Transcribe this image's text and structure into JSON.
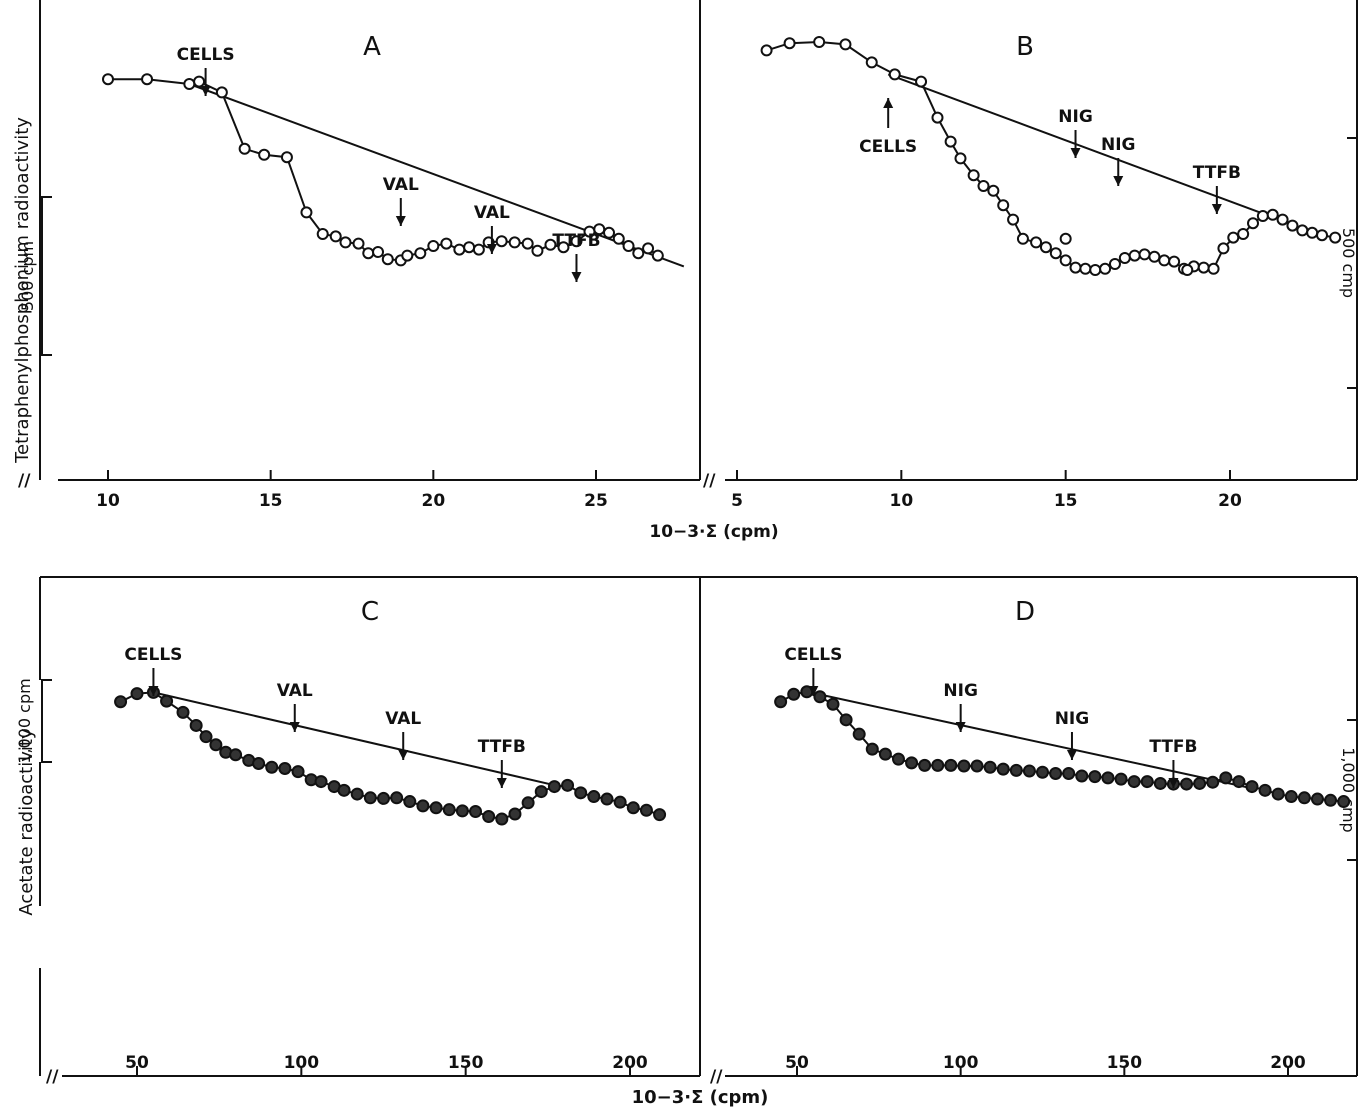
{
  "figure": {
    "top_xlabel": "10−3∙Σ (cpm)",
    "bottom_xlabel": "10−3∙Σ (cpm)",
    "top_ylabel": "Tetraphenylphosphonium radioactivity",
    "bottom_ylabel": "Acetate radioactivity",
    "axis_break": "//"
  },
  "chart_data": [
    {
      "panel": "A",
      "type": "line",
      "title": "A",
      "xlabel": "10−3∙Σ (cpm)",
      "ylabel": "Tetraphenylphosphonium radioactivity",
      "xlim": [
        8,
        28
      ],
      "ylim": [
        0,
        4000
      ],
      "xticks": [
        "10",
        "15",
        "20",
        "25"
      ],
      "scale_bar": {
        "label": "500 cpm",
        "value": 500
      },
      "marker": "open-circle",
      "series": [
        {
          "x": [
            10,
            11.2,
            12.5,
            12.8,
            13.5,
            14.2,
            14.8,
            15.5,
            16.1,
            16.6,
            17.0,
            17.3,
            17.7,
            18.0,
            18.3,
            18.6,
            19.0,
            19.2,
            19.6,
            20.0,
            20.4,
            20.8,
            21.1,
            21.4,
            21.7,
            22.1,
            22.5,
            22.9,
            23.2,
            23.6,
            24.0,
            24.4,
            24.8,
            25.1,
            25.4,
            25.7,
            26.0,
            26.3,
            26.6,
            26.9
          ],
          "y": [
            3340,
            3340,
            3300,
            3320,
            3230,
            2760,
            2710,
            2690,
            2230,
            2050,
            2030,
            1980,
            1970,
            1890,
            1900,
            1840,
            1830,
            1870,
            1890,
            1950,
            1970,
            1920,
            1940,
            1920,
            1980,
            1990,
            1980,
            1970,
            1910,
            1960,
            1940,
            1990,
            2070,
            2090,
            2060,
            2010,
            1950,
            1890,
            1930,
            1870
          ]
        }
      ],
      "baseline": {
        "x": [
          12.5,
          27.7
        ],
        "y": [
          3300,
          1780
        ]
      },
      "annotations": [
        {
          "text": "CELLS",
          "x": 13.0,
          "direction": "down"
        },
        {
          "text": "VAL",
          "x": 19.0,
          "direction": "down"
        },
        {
          "text": "VAL",
          "x": 21.8,
          "direction": "down"
        },
        {
          "text": "TTFB",
          "x": 24.4,
          "direction": "down"
        }
      ]
    },
    {
      "panel": "B",
      "type": "line",
      "title": "B",
      "xlabel": "10−3∙Σ (cpm)",
      "ylabel": "Tetraphenylphosphonium radioactivity",
      "xlim": [
        4.8,
        24
      ],
      "ylim": [
        0,
        4000
      ],
      "xticks": [
        "5",
        "10",
        "15",
        "20"
      ],
      "scale_bar": {
        "label": "500 cmp",
        "value": 500
      },
      "marker": "open-circle",
      "series": [
        {
          "x": [
            5.9,
            6.6,
            7.5,
            8.3,
            9.1,
            9.8,
            10.6,
            11.1,
            11.5,
            11.8,
            12.2,
            12.5,
            12.8,
            13.1,
            13.4,
            13.7,
            14.1,
            14.4,
            14.7,
            15.0,
            15.3,
            15.6,
            15.9,
            16.2,
            16.5,
            16.8,
            17.1,
            17.4,
            17.7,
            18.0,
            18.3,
            18.6,
            18.9,
            19.2,
            19.5,
            19.8,
            20.1,
            20.4,
            20.7,
            21.0,
            21.3,
            21.6,
            21.9,
            22.2,
            22.5,
            22.8,
            23.2
          ],
          "y": [
            3580,
            3640,
            3650,
            3630,
            3480,
            3380,
            3320,
            3020,
            2820,
            2680,
            2540,
            2450,
            2410,
            2290,
            2170,
            2010,
            1980,
            1940,
            1890,
            1830,
            1770,
            1760,
            1750,
            1760,
            1800,
            1850,
            1870,
            1880,
            1860,
            1830,
            1820,
            1760,
            1780,
            1770,
            1760,
            1930,
            2020,
            2050,
            2140,
            2200,
            2210,
            2170,
            2120,
            2080,
            2060,
            2040,
            2020
          ],
          "extra_points": [
            {
              "x": 15.0,
              "y": 2010
            },
            {
              "x": 18.7,
              "y": 1750
            }
          ]
        }
      ],
      "baseline": {
        "x": [
          9.6,
          21.3
        ],
        "y": [
          3380,
          2190
        ]
      },
      "annotations": [
        {
          "text": "CELLS",
          "x": 9.6,
          "direction": "up"
        },
        {
          "text": "NIG",
          "x": 15.3,
          "direction": "down"
        },
        {
          "text": "NIG",
          "x": 16.6,
          "direction": "down"
        },
        {
          "text": "TTFB",
          "x": 19.6,
          "direction": "down"
        }
      ]
    },
    {
      "panel": "C",
      "type": "line",
      "title": "C",
      "xlabel": "10−3∙Σ (cpm)",
      "ylabel": "Acetate radioactivity",
      "xlim": [
        35,
        215
      ],
      "ylim": [
        0,
        8000
      ],
      "xticks": [
        "50",
        "100",
        "150",
        "200"
      ],
      "scale_bar": {
        "label": "1,000 cpm",
        "value": 1000
      },
      "marker": "filled-circle",
      "series": [
        {
          "x": [
            45,
            50,
            55,
            59,
            64,
            68,
            71,
            74,
            77,
            80,
            84,
            87,
            91,
            95,
            99,
            103,
            106,
            110,
            113,
            117,
            121,
            125,
            129,
            133,
            137,
            141,
            145,
            149,
            153,
            157,
            161,
            165,
            169,
            173,
            177,
            181,
            185,
            189,
            193,
            197,
            201,
            205,
            209
          ],
          "y": [
            6000,
            6130,
            6150,
            6010,
            5830,
            5620,
            5440,
            5310,
            5190,
            5150,
            5060,
            5010,
            4950,
            4930,
            4880,
            4750,
            4720,
            4640,
            4580,
            4520,
            4460,
            4450,
            4460,
            4400,
            4330,
            4300,
            4270,
            4250,
            4240,
            4160,
            4120,
            4200,
            4380,
            4560,
            4640,
            4660,
            4540,
            4480,
            4440,
            4390,
            4300,
            4260,
            4190
          ]
        }
      ],
      "baseline": {
        "x": [
          55,
          178
        ],
        "y": [
          6150,
          4650
        ]
      },
      "annotations": [
        {
          "text": "CELLS",
          "x": 55,
          "direction": "down"
        },
        {
          "text": "VAL",
          "x": 98,
          "direction": "down"
        },
        {
          "text": "VAL",
          "x": 131,
          "direction": "down"
        },
        {
          "text": "TTFB",
          "x": 161,
          "direction": "down"
        }
      ]
    },
    {
      "panel": "D",
      "type": "line",
      "title": "D",
      "xlabel": "10−3∙Σ (cpm)",
      "ylabel": "Acetate radioactivity",
      "xlim": [
        34,
        220
      ],
      "ylim": [
        0,
        8000
      ],
      "xticks": [
        "50",
        "100",
        "150",
        "200"
      ],
      "scale_bar": {
        "label": "1,000 cmp",
        "value": 1000
      },
      "marker": "filled-circle",
      "series": [
        {
          "x": [
            45,
            49,
            53,
            57,
            61,
            65,
            69,
            73,
            77,
            81,
            85,
            89,
            93,
            97,
            101,
            105,
            109,
            113,
            117,
            121,
            125,
            129,
            133,
            137,
            141,
            145,
            149,
            153,
            157,
            161,
            165,
            169,
            173,
            177,
            181,
            185,
            189,
            193,
            197,
            201,
            205,
            209,
            213,
            217
          ],
          "y": [
            6000,
            6120,
            6160,
            6080,
            5960,
            5710,
            5480,
            5240,
            5160,
            5080,
            5020,
            4980,
            4980,
            4980,
            4970,
            4970,
            4950,
            4920,
            4900,
            4890,
            4870,
            4850,
            4850,
            4810,
            4800,
            4780,
            4760,
            4720,
            4720,
            4690,
            4680,
            4680,
            4690,
            4710,
            4780,
            4720,
            4640,
            4580,
            4520,
            4480,
            4460,
            4440,
            4420,
            4400
          ]
        }
      ],
      "baseline": {
        "x": [
          54,
          190
        ],
        "y": [
          6150,
          4600
        ]
      },
      "annotations": [
        {
          "text": "CELLS",
          "x": 55,
          "direction": "down"
        },
        {
          "text": "NIG",
          "x": 100,
          "direction": "down"
        },
        {
          "text": "NIG",
          "x": 134,
          "direction": "down"
        },
        {
          "text": "TTFB",
          "x": 165,
          "direction": "down"
        }
      ]
    }
  ]
}
